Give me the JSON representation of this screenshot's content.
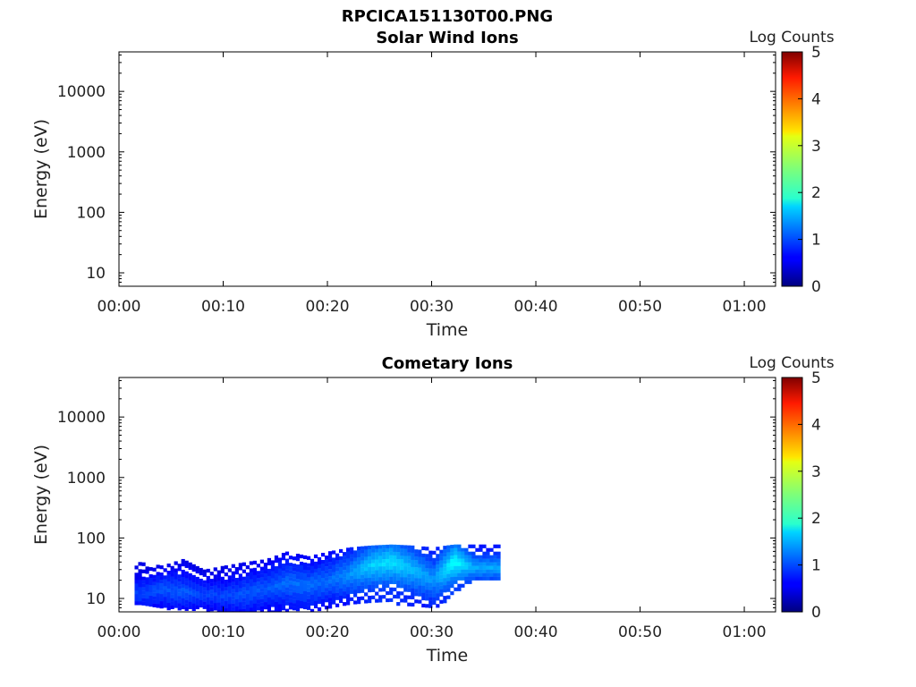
{
  "figure_title": "RPCICA151130T00.PNG",
  "chart_data": [
    {
      "type": "heatmap",
      "title": "Solar Wind Ions",
      "xlabel": "Time",
      "ylabel": "Energy (eV)",
      "y_scale": "log",
      "ylim": [
        6,
        45000
      ],
      "xlim_minutes": [
        0,
        63
      ],
      "x_ticks": [
        {
          "minute": 0,
          "label": "00:00"
        },
        {
          "minute": 10,
          "label": "00:10"
        },
        {
          "minute": 20,
          "label": "00:20"
        },
        {
          "minute": 30,
          "label": "00:30"
        },
        {
          "minute": 40,
          "label": "00:40"
        },
        {
          "minute": 50,
          "label": "00:50"
        },
        {
          "minute": 60,
          "label": "01:00"
        }
      ],
      "y_ticks": [
        {
          "value": 10,
          "label": "10"
        },
        {
          "value": 100,
          "label": "100"
        },
        {
          "value": 1000,
          "label": "1000"
        },
        {
          "value": 10000,
          "label": "10000"
        }
      ],
      "colorbar": {
        "label": "Log Counts",
        "range": [
          0,
          5
        ],
        "ticks": [
          "0",
          "1",
          "2",
          "3",
          "4",
          "5"
        ]
      },
      "data": []
    },
    {
      "type": "heatmap",
      "title": "Cometary Ions",
      "xlabel": "Time",
      "ylabel": "Energy (eV)",
      "y_scale": "log",
      "ylim": [
        6,
        45000
      ],
      "xlim_minutes": [
        0,
        63
      ],
      "x_ticks": [
        {
          "minute": 0,
          "label": "00:00"
        },
        {
          "minute": 10,
          "label": "00:10"
        },
        {
          "minute": 20,
          "label": "00:20"
        },
        {
          "minute": 30,
          "label": "00:30"
        },
        {
          "minute": 40,
          "label": "00:40"
        },
        {
          "minute": 50,
          "label": "00:50"
        },
        {
          "minute": 60,
          "label": "01:00"
        }
      ],
      "y_ticks": [
        {
          "value": 10,
          "label": "10"
        },
        {
          "value": 100,
          "label": "100"
        },
        {
          "value": 1000,
          "label": "1000"
        },
        {
          "value": 10000,
          "label": "10000"
        }
      ],
      "colorbar": {
        "label": "Log Counts",
        "range": [
          0,
          5
        ],
        "ticks": [
          "0",
          "1",
          "2",
          "3",
          "4",
          "5"
        ]
      },
      "data_extent": {
        "time_minutes": [
          1.5,
          36.6
        ],
        "energy_eV": [
          6,
          80
        ]
      },
      "data": [
        {
          "t": 2,
          "lo": 8,
          "hi": 40,
          "peak": 12,
          "v": 0.9
        },
        {
          "t": 4,
          "lo": 7,
          "hi": 35,
          "peak": 14,
          "v": 1.0
        },
        {
          "t": 6,
          "lo": 7,
          "hi": 45,
          "peak": 13,
          "v": 1.0
        },
        {
          "t": 8,
          "lo": 7,
          "hi": 30,
          "peak": 12,
          "v": 0.9
        },
        {
          "t": 10,
          "lo": 6,
          "hi": 35,
          "peak": 11,
          "v": 0.9
        },
        {
          "t": 12,
          "lo": 6,
          "hi": 40,
          "peak": 12,
          "v": 1.0
        },
        {
          "t": 14,
          "lo": 6,
          "hi": 45,
          "peak": 15,
          "v": 1.0
        },
        {
          "t": 16,
          "lo": 6,
          "hi": 60,
          "peak": 18,
          "v": 1.1
        },
        {
          "t": 18,
          "lo": 6,
          "hi": 50,
          "peak": 16,
          "v": 1.1
        },
        {
          "t": 20,
          "lo": 7,
          "hi": 60,
          "peak": 20,
          "v": 1.1
        },
        {
          "t": 22,
          "lo": 8,
          "hi": 70,
          "peak": 25,
          "v": 1.3
        },
        {
          "t": 24,
          "lo": 9,
          "hi": 75,
          "peak": 35,
          "v": 1.6
        },
        {
          "t": 26,
          "lo": 9,
          "hi": 78,
          "peak": 40,
          "v": 1.7
        },
        {
          "t": 28,
          "lo": 8,
          "hi": 75,
          "peak": 30,
          "v": 1.5
        },
        {
          "t": 30,
          "lo": 7,
          "hi": 70,
          "peak": 20,
          "v": 1.3
        },
        {
          "t": 32,
          "lo": 12,
          "hi": 78,
          "peak": 40,
          "v": 1.9
        },
        {
          "t": 34,
          "lo": 20,
          "hi": 78,
          "peak": 32,
          "v": 1.4
        },
        {
          "t": 36,
          "lo": 20,
          "hi": 78,
          "peak": 32,
          "v": 1.4
        }
      ]
    }
  ]
}
